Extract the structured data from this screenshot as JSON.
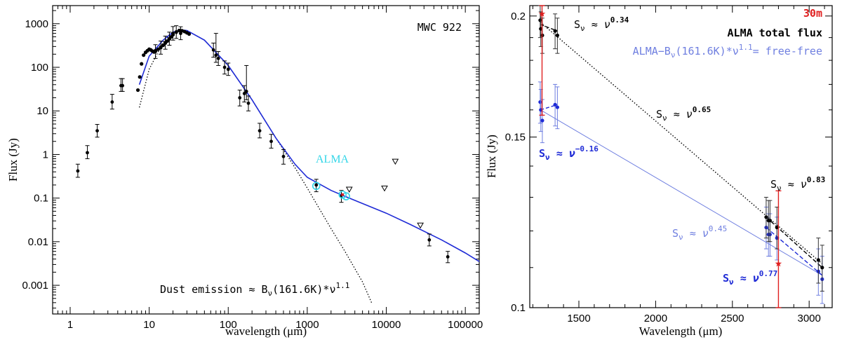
{
  "figure": {
    "description_free": true
  },
  "chart_data": [
    {
      "type": "scatter",
      "title": "MWC 922",
      "xlabel": "wavelength (μm)",
      "ylabel": "Flux (Jy)",
      "xscale": "log",
      "yscale": "log",
      "xlim": [
        0.6,
        150000
      ],
      "ylim": [
        0.00022,
        2600
      ],
      "xticks": [
        1,
        10,
        100,
        1000,
        10000,
        100000
      ],
      "xtick_labels": [
        "1",
        "10",
        "100",
        "1000",
        "10000",
        "100000"
      ],
      "yticks": [
        0.001,
        0.01,
        0.1,
        1,
        10,
        100,
        1000
      ],
      "ytick_labels": [
        "0.001",
        "0.01",
        "0.1",
        "1",
        "10",
        "100",
        "1000"
      ],
      "colors": {
        "data": "#000000",
        "model": "#1f2bd6",
        "alma": "#33d6e8",
        "dust": "#000000",
        "red": "#e02020"
      },
      "series": [
        {
          "name": "photometry",
          "points": [
            {
              "x": 1.25,
              "y": 0.42,
              "lo": 0.3,
              "hi": 0.6
            },
            {
              "x": 1.65,
              "y": 1.1,
              "lo": 0.8,
              "hi": 1.6
            },
            {
              "x": 2.2,
              "y": 3.5,
              "lo": 2.5,
              "hi": 4.9
            },
            {
              "x": 3.4,
              "y": 16,
              "lo": 11,
              "hi": 24
            },
            {
              "x": 4.4,
              "y": 38,
              "lo": 28,
              "hi": 55
            },
            {
              "x": 4.6,
              "y": 38,
              "lo": 28,
              "hi": 55
            },
            {
              "x": 12,
              "y": 230,
              "lo": 160,
              "hi": 330
            },
            {
              "x": 14,
              "y": 280,
              "lo": 200,
              "hi": 400
            },
            {
              "x": 16,
              "y": 370,
              "lo": 260,
              "hi": 520
            },
            {
              "x": 18,
              "y": 450,
              "lo": 320,
              "hi": 640
            },
            {
              "x": 20,
              "y": 600,
              "lo": 420,
              "hi": 860
            },
            {
              "x": 22,
              "y": 650,
              "lo": 460,
              "hi": 900
            },
            {
              "x": 25,
              "y": 600,
              "lo": 430,
              "hi": 850
            },
            {
              "x": 65,
              "y": 250,
              "lo": 170,
              "hi": 360
            },
            {
              "x": 70,
              "y": 190,
              "lo": 130,
              "hi": 600
            },
            {
              "x": 75,
              "y": 160,
              "lo": 110,
              "hi": 230
            },
            {
              "x": 90,
              "y": 100,
              "lo": 70,
              "hi": 140
            },
            {
              "x": 100,
              "y": 90,
              "lo": 65,
              "hi": 125
            },
            {
              "x": 140,
              "y": 20,
              "lo": 13,
              "hi": 30
            },
            {
              "x": 160,
              "y": 25,
              "lo": 16,
              "hi": 38
            },
            {
              "x": 170,
              "y": 28,
              "lo": 18,
              "hi": 110
            },
            {
              "x": 180,
              "y": 15,
              "lo": 10,
              "hi": 22
            },
            {
              "x": 250,
              "y": 3.5,
              "lo": 2.4,
              "hi": 5.2
            },
            {
              "x": 350,
              "y": 2.0,
              "lo": 1.4,
              "hi": 2.9
            },
            {
              "x": 500,
              "y": 0.9,
              "lo": 0.6,
              "hi": 1.3
            },
            {
              "x": 1300,
              "y": 0.2,
              "lo": 0.14,
              "hi": 0.27
            },
            {
              "x": 2700,
              "y": 0.11,
              "lo": 0.08,
              "hi": 0.15
            },
            {
              "x": 35000,
              "y": 0.011,
              "lo": 0.008,
              "hi": 0.015
            },
            {
              "x": 60000,
              "y": 0.0045,
              "lo": 0.0033,
              "hi": 0.006
            }
          ]
        },
        {
          "name": "spectrum",
          "x": [
            7.2,
            7.6,
            8.0,
            8.5,
            9.0,
            9.5,
            10,
            10.5,
            11,
            11.5,
            12,
            13,
            14,
            15,
            16,
            17,
            18,
            19,
            20,
            22,
            24,
            26,
            28,
            30,
            32
          ],
          "y": [
            30,
            60,
            120,
            190,
            220,
            240,
            260,
            250,
            235,
            225,
            240,
            260,
            290,
            320,
            360,
            400,
            450,
            500,
            560,
            640,
            700,
            690,
            660,
            620,
            580
          ]
        },
        {
          "name": "model",
          "x": [
            7.5,
            10,
            15,
            20,
            25,
            30,
            50,
            100,
            200,
            400,
            700,
            1000,
            2000,
            3000,
            5000,
            10000,
            20000,
            50000,
            100000,
            150000
          ],
          "y": [
            40,
            180,
            420,
            640,
            720,
            700,
            420,
            110,
            18,
            2.4,
            0.6,
            0.3,
            0.15,
            0.11,
            0.075,
            0.045,
            0.025,
            0.011,
            0.0055,
            0.0035
          ]
        },
        {
          "name": "dust",
          "x": [
            7.5,
            10,
            15,
            20,
            25,
            30,
            50,
            100,
            200,
            400,
            700,
            1000,
            2000,
            3000,
            5000,
            6500
          ],
          "y": [
            12,
            90,
            380,
            620,
            720,
            700,
            420,
            110,
            18,
            2.4,
            0.5,
            0.17,
            0.02,
            0.006,
            0.0012,
            0.0004
          ]
        },
        {
          "name": "ALMA",
          "points": [
            {
              "x": 1300,
              "y": 0.19
            },
            {
              "x": 2800,
              "y": 0.12
            },
            {
              "x": 3100,
              "y": 0.11
            }
          ]
        },
        {
          "name": "upper_limits",
          "points": [
            {
              "x": 3400,
              "y": 0.16
            },
            {
              "x": 9500,
              "y": 0.17
            },
            {
              "x": 13000,
              "y": 0.7
            },
            {
              "x": 27000,
              "y": 0.024
            }
          ]
        }
      ],
      "annotations": {
        "alma_label": "ALMA",
        "dust_label": "Dust emission ≈ B",
        "dust_nu": "ν",
        "dust_args": "(161.6K)*",
        "dust_nu2": "ν",
        "dust_exp": "1.1"
      }
    },
    {
      "type": "scatter",
      "title": "",
      "xlabel": "Wavelength (μm)",
      "ylabel": "Flux (Jy)",
      "xscale": "linear",
      "yscale": "log",
      "xlim": [
        1180,
        3150
      ],
      "ylim": [
        0.1,
        0.205
      ],
      "xticks": [
        1500,
        2000,
        2500,
        3000
      ],
      "xtick_labels": [
        "1500",
        "2000",
        "2500",
        "3000"
      ],
      "yticks": [
        0.1,
        0.15,
        0.2
      ],
      "ytick_labels": [
        "0.1",
        "0.15",
        "0.2"
      ],
      "colors": {
        "total": "#000000",
        "freefree": "#1f2bd6",
        "freefree_light": "#6f7fe0",
        "red": "#e02020"
      },
      "series": [
        {
          "name": "ALMA total flux",
          "points": [
            {
              "x": 1248,
              "y": 0.198,
              "lo": 0.19,
              "hi": 0.205
            },
            {
              "x": 1252,
              "y": 0.194,
              "lo": 0.186,
              "hi": 0.202
            },
            {
              "x": 1262,
              "y": 0.191,
              "lo": 0.183,
              "hi": 0.199
            },
            {
              "x": 1345,
              "y": 0.193,
              "lo": 0.185,
              "hi": 0.201
            },
            {
              "x": 1360,
              "y": 0.191,
              "lo": 0.183,
              "hi": 0.199
            },
            {
              "x": 2720,
              "y": 0.124,
              "lo": 0.118,
              "hi": 0.13
            },
            {
              "x": 2735,
              "y": 0.123,
              "lo": 0.117,
              "hi": 0.129
            },
            {
              "x": 2745,
              "y": 0.123,
              "lo": 0.117,
              "hi": 0.129
            },
            {
              "x": 2790,
              "y": 0.121,
              "lo": 0.115,
              "hi": 0.127
            },
            {
              "x": 3060,
              "y": 0.112,
              "lo": 0.106,
              "hi": 0.118
            },
            {
              "x": 3085,
              "y": 0.11,
              "lo": 0.104,
              "hi": 0.116
            }
          ]
        },
        {
          "name": "free-free",
          "points": [
            {
              "x": 1248,
              "y": 0.163,
              "lo": 0.155,
              "hi": 0.171
            },
            {
              "x": 1252,
              "y": 0.16,
              "lo": 0.152,
              "hi": 0.168
            },
            {
              "x": 1262,
              "y": 0.156,
              "lo": 0.148,
              "hi": 0.164
            },
            {
              "x": 1345,
              "y": 0.162,
              "lo": 0.154,
              "hi": 0.17
            },
            {
              "x": 1360,
              "y": 0.161,
              "lo": 0.153,
              "hi": 0.169
            },
            {
              "x": 2720,
              "y": 0.121,
              "lo": 0.115,
              "hi": 0.127
            },
            {
              "x": 2735,
              "y": 0.119,
              "lo": 0.113,
              "hi": 0.125
            },
            {
              "x": 2745,
              "y": 0.119,
              "lo": 0.113,
              "hi": 0.125
            },
            {
              "x": 2790,
              "y": 0.118,
              "lo": 0.112,
              "hi": 0.124
            },
            {
              "x": 3060,
              "y": 0.109,
              "lo": 0.103,
              "hi": 0.115
            },
            {
              "x": 3085,
              "y": 0.107,
              "lo": 0.101,
              "hi": 0.113
            }
          ]
        },
        {
          "name": "30m",
          "points": [
            {
              "x": 1260,
              "y": 0.201,
              "lo": 0.158,
              "hi": 0.205
            },
            {
              "x": 2800,
              "y": 0.111,
              "lo": 0.1,
              "hi": 0.132
            }
          ]
        },
        {
          "name": "fit_total_all",
          "x": [
            1250,
            3085
          ],
          "y": [
            0.197,
            0.111
          ]
        },
        {
          "name": "fit_freefree_all",
          "x": [
            1250,
            3085
          ],
          "y": [
            0.16,
            0.108
          ]
        },
        {
          "name": "fit_total_short",
          "x": [
            1250,
            1360
          ],
          "y": [
            0.196,
            0.193
          ]
        },
        {
          "name": "fit_freefree_short",
          "x": [
            1250,
            1360
          ],
          "y": [
            0.16,
            0.162
          ]
        },
        {
          "name": "fit_total_long",
          "x": [
            2720,
            3085
          ],
          "y": [
            0.124,
            0.11
          ]
        },
        {
          "name": "fit_freefree_long",
          "x": [
            2720,
            3085
          ],
          "y": [
            0.121,
            0.108
          ]
        }
      ],
      "legend": {
        "label_30m": "30m",
        "label_total": "ALMA total flux",
        "label_ff_a": "ALMA−B",
        "label_ff_nu": "ν",
        "label_ff_b": "(161.6K)*",
        "label_ff_nu2": "ν",
        "label_ff_exp": "1.1",
        "label_ff_c": "= free-free"
      },
      "annotations": {
        "s_label": "S",
        "nu": "ν",
        "approx": "≈",
        "exp_034": "0.34",
        "exp_065": "0.65",
        "exp_m016": "−0.16",
        "exp_083": "0.83",
        "exp_045": "0.45",
        "exp_077": "0.77"
      }
    }
  ]
}
